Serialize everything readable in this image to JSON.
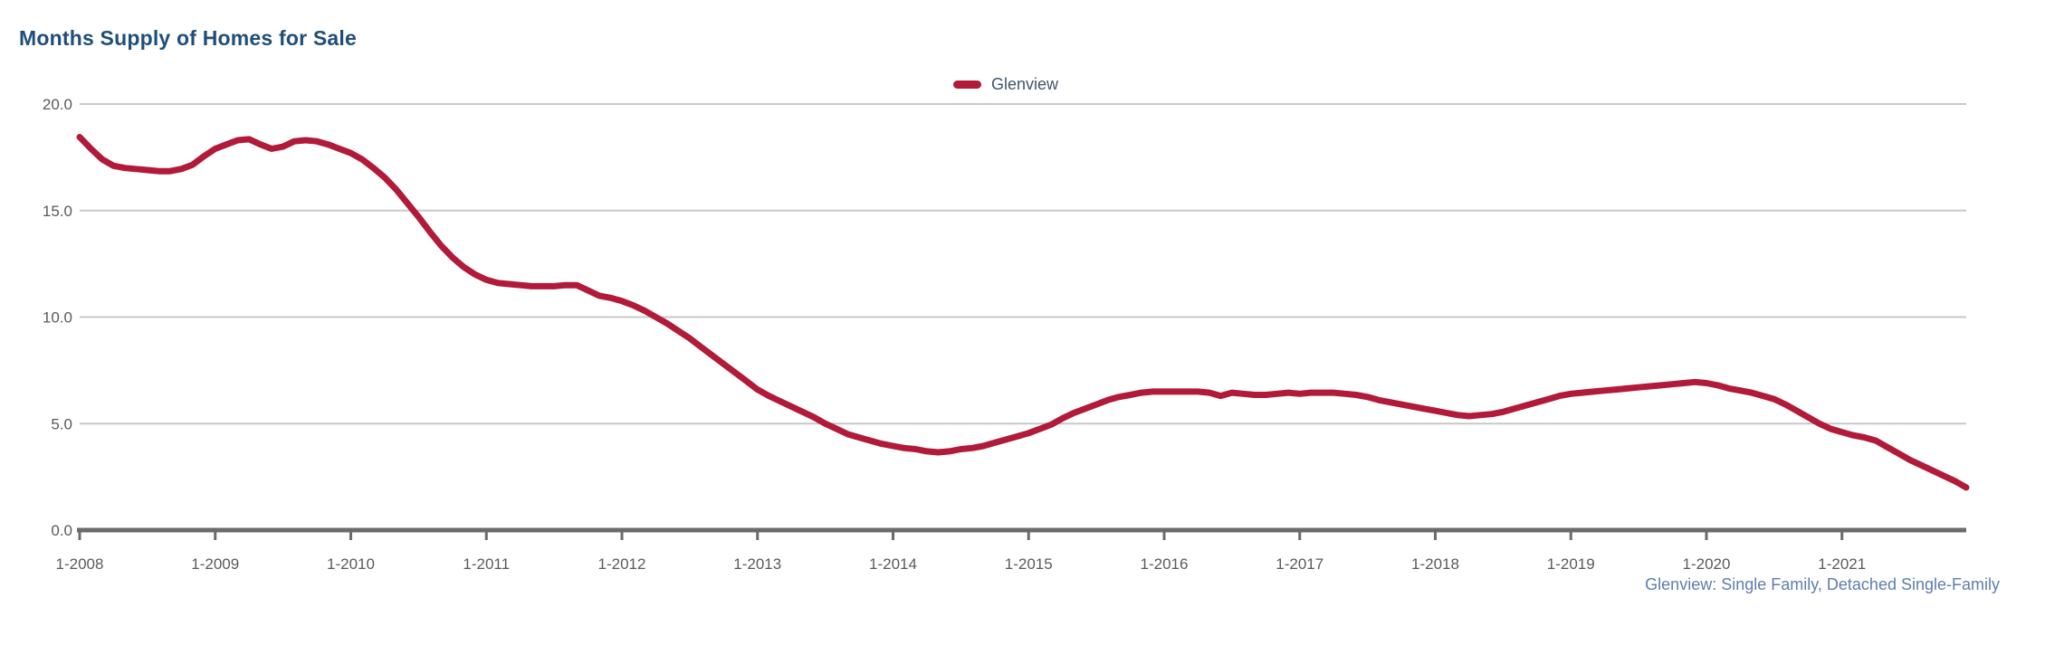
{
  "title": "Months Supply of Homes for Sale",
  "legend": {
    "series_label": "Glenview",
    "swatch_color": "#B11A38"
  },
  "caption": "Glenview: Single Family, Detached Single-Family",
  "colors": {
    "title_text": "#1F4E79",
    "legend_text": "#44546A",
    "caption_text": "#5F7DAF",
    "axis_tick_text": "#5A5A5A",
    "gridline": "#C8C8C8",
    "axis_line": "#6B6B6B",
    "series_line": "#B11A38",
    "background": "#FFFFFF"
  },
  "chart_data": {
    "type": "line",
    "title": "Months Supply of Homes for Sale",
    "xlabel": "",
    "ylabel": "",
    "ylim": [
      0,
      20
    ],
    "y_ticks": [
      0,
      5,
      10,
      15,
      20
    ],
    "y_tick_labels": [
      "0.0",
      "5.0",
      "10.0",
      "15.0",
      "20.0"
    ],
    "x_tick_labels": [
      "1-2008",
      "1-2009",
      "1-2010",
      "1-2011",
      "1-2012",
      "1-2013",
      "1-2014",
      "1-2015",
      "1-2016",
      "1-2017",
      "1-2018",
      "1-2019",
      "1-2020",
      "1-2021"
    ],
    "grid": "horizontal-only",
    "legend_position": "top-center",
    "series": [
      {
        "name": "Glenview",
        "color": "#B11A38",
        "start_month": "1-2008",
        "end_month": "12-2021",
        "frequency": "monthly",
        "values": [
          18.45,
          17.9,
          17.4,
          17.1,
          17.0,
          16.95,
          16.9,
          16.85,
          16.85,
          16.95,
          17.15,
          17.55,
          17.9,
          18.1,
          18.3,
          18.35,
          18.1,
          17.9,
          18.0,
          18.25,
          18.3,
          18.25,
          18.1,
          17.9,
          17.7,
          17.4,
          17.0,
          16.55,
          16.0,
          15.35,
          14.7,
          14.0,
          13.35,
          12.8,
          12.35,
          12.0,
          11.75,
          11.6,
          11.55,
          11.5,
          11.45,
          11.45,
          11.45,
          11.5,
          11.5,
          11.25,
          11.0,
          10.9,
          10.75,
          10.55,
          10.3,
          10.0,
          9.7,
          9.35,
          9.0,
          8.6,
          8.2,
          7.8,
          7.4,
          7.0,
          6.6,
          6.3,
          6.05,
          5.8,
          5.55,
          5.3,
          5.0,
          4.75,
          4.5,
          4.35,
          4.2,
          4.05,
          3.95,
          3.85,
          3.8,
          3.7,
          3.65,
          3.7,
          3.8,
          3.85,
          3.95,
          4.1,
          4.25,
          4.4,
          4.55,
          4.75,
          4.95,
          5.25,
          5.5,
          5.7,
          5.9,
          6.1,
          6.25,
          6.35,
          6.45,
          6.5,
          6.5,
          6.5,
          6.5,
          6.5,
          6.45,
          6.3,
          6.45,
          6.4,
          6.35,
          6.35,
          6.4,
          6.45,
          6.4,
          6.45,
          6.45,
          6.45,
          6.4,
          6.35,
          6.25,
          6.1,
          6.0,
          5.9,
          5.8,
          5.7,
          5.6,
          5.5,
          5.4,
          5.35,
          5.4,
          5.45,
          5.55,
          5.7,
          5.85,
          6.0,
          6.15,
          6.3,
          6.4,
          6.45,
          6.5,
          6.55,
          6.6,
          6.65,
          6.7,
          6.75,
          6.8,
          6.85,
          6.9,
          6.95,
          6.9,
          6.8,
          6.65,
          6.55,
          6.45,
          6.3,
          6.15,
          5.9,
          5.6,
          5.3,
          5.0,
          4.75,
          4.6,
          4.45,
          4.35,
          4.2,
          3.9,
          3.6,
          3.3,
          3.05,
          2.8,
          2.55,
          2.3,
          2.0
        ]
      }
    ]
  }
}
